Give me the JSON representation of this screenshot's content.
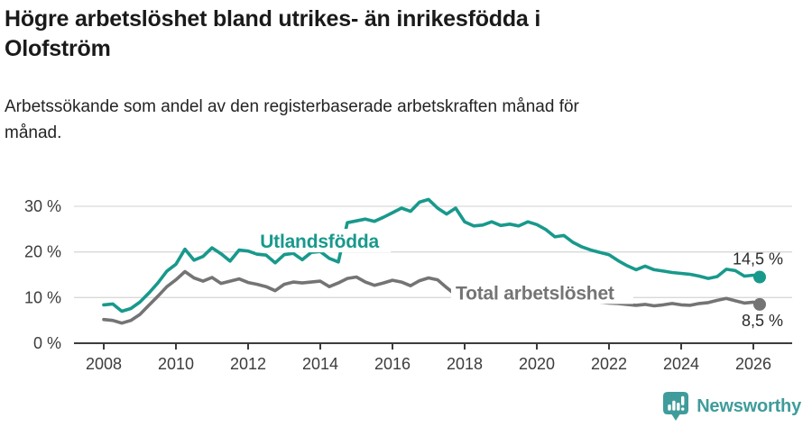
{
  "header": {
    "title_line1": "Högre arbetslöshet bland utrikes- än inrikesfödda i",
    "title_line2": "Olofström",
    "subtitle_line1": "Arbetssökande som andel av den registerbaserade arbetskraften månad för",
    "subtitle_line2": "månad."
  },
  "chart_data": {
    "type": "line",
    "title": "Högre arbetslöshet bland utrikes- än inrikesfödda i Olofström",
    "subtitle": "Arbetssökande som andel av den registerbaserade arbetskraften månad för månad.",
    "xlabel": "",
    "ylabel": "",
    "ylim": [
      0,
      33
    ],
    "xlim": [
      2007.25,
      2026.6
    ],
    "grid": "horizontal-y",
    "x_ticks": [
      2008,
      2010,
      2012,
      2014,
      2016,
      2018,
      2020,
      2022,
      2024,
      2026
    ],
    "y_ticks": [
      0,
      10,
      20,
      30
    ],
    "y_tick_suffix": " %",
    "x": [
      2008,
      2008.25,
      2008.5,
      2008.75,
      2009,
      2009.25,
      2009.5,
      2009.75,
      2010,
      2010.25,
      2010.5,
      2010.75,
      2011,
      2011.25,
      2011.5,
      2011.75,
      2012,
      2012.25,
      2012.5,
      2012.75,
      2013,
      2013.25,
      2013.5,
      2013.75,
      2014,
      2014.25,
      2014.5,
      2014.75,
      2015,
      2015.25,
      2015.5,
      2015.75,
      2016,
      2016.25,
      2016.5,
      2016.75,
      2017,
      2017.25,
      2017.5,
      2017.75,
      2018,
      2018.25,
      2018.5,
      2018.75,
      2019,
      2019.25,
      2019.5,
      2019.75,
      2020,
      2020.25,
      2020.5,
      2020.75,
      2021,
      2021.25,
      2021.5,
      2021.75,
      2022,
      2022.25,
      2022.5,
      2022.75,
      2023,
      2023.25,
      2023.5,
      2023.75,
      2024,
      2024.25,
      2024.5,
      2024.75,
      2025,
      2025.25,
      2025.5,
      2025.75,
      2026,
      2026.1
    ],
    "series": [
      {
        "name": "Utlandsfödda",
        "color": "#18998c",
        "end_label": "14,5 %",
        "label_pos": {
          "x": 2012.33,
          "v": 20.9
        },
        "values": [
          8.4,
          8.6,
          7.0,
          7.6,
          9.0,
          11.0,
          13.2,
          15.8,
          17.3,
          20.6,
          18.2,
          19.0,
          20.9,
          19.6,
          18.0,
          20.4,
          20.2,
          19.5,
          19.3,
          17.6,
          19.4,
          19.7,
          18.3,
          19.9,
          20.1,
          18.6,
          17.8,
          26.4,
          26.8,
          27.2,
          26.7,
          27.6,
          28.6,
          29.6,
          28.9,
          30.9,
          31.5,
          29.6,
          28.3,
          29.6,
          26.6,
          25.7,
          25.9,
          26.6,
          25.8,
          26.1,
          25.7,
          26.6,
          26.0,
          24.9,
          23.3,
          23.6,
          22.1,
          21.1,
          20.4,
          19.9,
          19.4,
          18.1,
          17.0,
          16.1,
          16.9,
          16.1,
          15.8,
          15.5,
          15.3,
          15.1,
          14.7,
          14.2,
          14.6,
          16.2,
          15.9,
          14.7,
          14.9,
          14.5
        ]
      },
      {
        "name": "Total arbetslöshet",
        "color": "#747474",
        "end_label": "8,5 %",
        "label_pos": {
          "x": 2017.75,
          "v": 9.6
        },
        "values": [
          5.2,
          5.0,
          4.4,
          5.0,
          6.3,
          8.3,
          10.3,
          12.4,
          13.9,
          15.7,
          14.3,
          13.6,
          14.4,
          13.1,
          13.6,
          14.1,
          13.3,
          12.9,
          12.4,
          11.5,
          12.9,
          13.4,
          13.2,
          13.4,
          13.6,
          12.4,
          13.2,
          14.2,
          14.5,
          13.4,
          12.7,
          13.2,
          13.8,
          13.4,
          12.6,
          13.7,
          14.3,
          13.9,
          12.2,
          10.6,
          10.4,
          10.6,
          10.8,
          10.5,
          10.2,
          10.0,
          10.2,
          10.4,
          10.6,
          10.9,
          10.7,
          10.3,
          9.9,
          9.6,
          9.3,
          9.0,
          8.8,
          8.7,
          8.5,
          8.3,
          8.5,
          8.2,
          8.4,
          8.7,
          8.4,
          8.3,
          8.7,
          8.9,
          9.4,
          9.8,
          9.3,
          8.8,
          9.0,
          8.5
        ]
      }
    ],
    "colors": {
      "grid": "#d9d9d9",
      "axis": "#3c3c3c",
      "tick_text": "#3c3c3c",
      "end_label_text": "#2b2b2b"
    }
  },
  "footer": {
    "brand": "Newsworthy",
    "logo_color": "#3f9c9b"
  }
}
